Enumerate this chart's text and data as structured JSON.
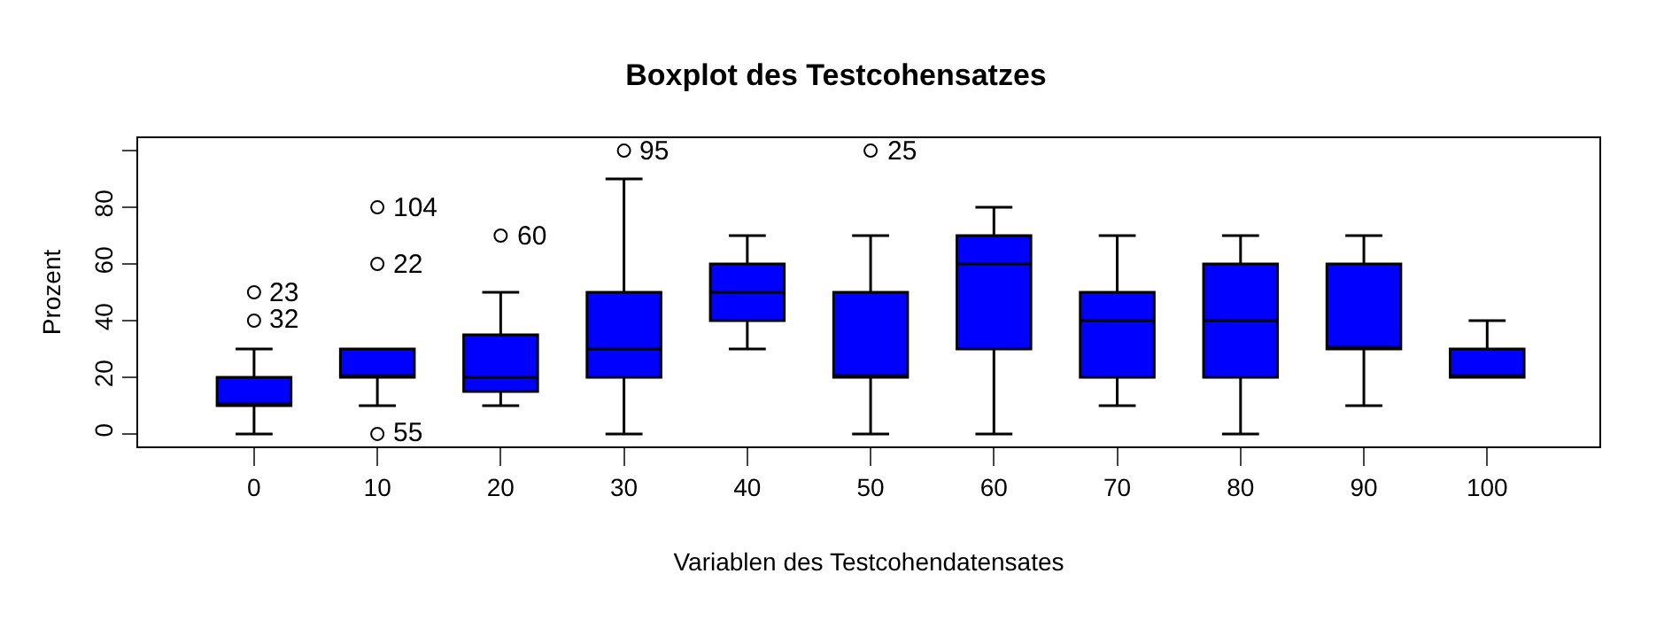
{
  "chart_data": {
    "type": "box",
    "title": "Boxplot des Testcohensatzes",
    "xlabel": "Variablen des Testcohendatensates",
    "ylabel": "Prozent",
    "categories": [
      "0",
      "10",
      "20",
      "30",
      "40",
      "50",
      "60",
      "70",
      "80",
      "90",
      "100"
    ],
    "color": "#0000ff",
    "boxes": [
      {
        "low": 0,
        "q1": 10,
        "median": 10,
        "q3": 20,
        "high": 30
      },
      {
        "low": 10,
        "q1": 20,
        "median": 20,
        "q3": 30,
        "high": 30
      },
      {
        "low": 10,
        "q1": 15,
        "median": 20,
        "q3": 35,
        "high": 50
      },
      {
        "low": 0,
        "q1": 20,
        "median": 30,
        "q3": 50,
        "high": 90
      },
      {
        "low": 30,
        "q1": 40,
        "median": 50,
        "q3": 60,
        "high": 70
      },
      {
        "low": 0,
        "q1": 20,
        "median": 20,
        "q3": 50,
        "high": 70
      },
      {
        "low": 0,
        "q1": 30,
        "median": 60,
        "q3": 70,
        "high": 80
      },
      {
        "low": 10,
        "q1": 20,
        "median": 40,
        "q3": 50,
        "high": 70
      },
      {
        "low": 0,
        "q1": 20,
        "median": 40,
        "q3": 60,
        "high": 70
      },
      {
        "low": 10,
        "q1": 30,
        "median": 30,
        "q3": 60,
        "high": 70
      },
      {
        "low": 20,
        "q1": 20,
        "median": 20,
        "q3": 30,
        "high": 40
      }
    ],
    "series": [
      {
        "type": "scatter",
        "color": "#000000",
        "x": [
          "0",
          "0",
          "10",
          "10",
          "10",
          "20",
          "30",
          "50"
        ],
        "values": [
          40,
          50,
          0,
          60,
          80,
          70,
          100,
          100
        ]
      }
    ],
    "annotations": [
      {
        "text": "32",
        "x": "0",
        "y": 40
      },
      {
        "text": "23",
        "x": "0",
        "y": 50
      },
      {
        "text": "55",
        "x": "10",
        "y": 0
      },
      {
        "text": "22",
        "x": "10",
        "y": 60
      },
      {
        "text": "104",
        "x": "10",
        "y": 80
      },
      {
        "text": "60",
        "x": "20",
        "y": 70
      },
      {
        "text": "95",
        "x": "30",
        "y": 100
      },
      {
        "text": "25",
        "x": "50",
        "y": 100
      }
    ],
    "ylim": [
      -4.4,
      104.4
    ],
    "yticks": [
      0,
      20,
      40,
      60,
      80,
      {
        "value": 100,
        "label": null
      }
    ],
    "marker": "circle"
  }
}
